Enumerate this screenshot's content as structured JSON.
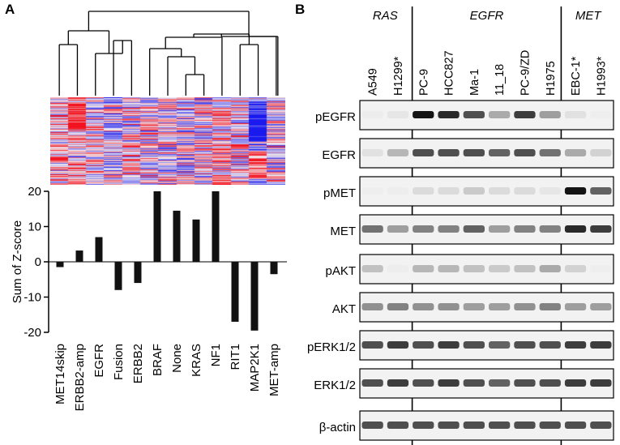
{
  "panel_a": {
    "letter": "A",
    "dendrogram_leaves": 13,
    "heatmap_colors": {
      "high": "#e8121d",
      "low": "#1a1aee",
      "mid": "#f2eef2"
    },
    "chart_data": {
      "type": "bar",
      "categories": [
        "MET14skip",
        "ERBB2-amp",
        "EGFR",
        "Fusion",
        "ERBB2",
        "BRAF",
        "None",
        "KRAS",
        "NF1",
        "RIT1",
        "MAP2K1",
        "MET-amp"
      ],
      "values": [
        -1.5,
        3.2,
        7,
        -8,
        -6,
        20,
        14.5,
        12,
        20,
        -17,
        -19.5,
        -3.5
      ],
      "ylabel": "Sum of Z-score",
      "ylim": [
        -20,
        20
      ],
      "yticks": [
        "20",
        "10",
        "0",
        "-10",
        "-20"
      ],
      "bar_color": "#111111"
    }
  },
  "panel_b": {
    "letter": "B",
    "groups": [
      {
        "label": "RAS",
        "lanes": [
          0,
          1
        ]
      },
      {
        "label": "EGFR",
        "lanes": [
          2,
          3,
          4,
          5,
          6,
          7
        ]
      },
      {
        "label": "MET",
        "lanes": [
          8,
          9
        ]
      }
    ],
    "lanes": [
      "A549",
      "H1299*",
      "PC-9",
      "HCC827",
      "Ma-1",
      "11_18",
      "PC-9/ZD",
      "H1975",
      "EBC-1*",
      "H1993*"
    ],
    "blots": [
      {
        "label": "pEGFR",
        "intensity": [
          0.1,
          0.2,
          1,
          0.95,
          0.85,
          0.55,
          0.9,
          0.6,
          0.25,
          0.05
        ]
      },
      {
        "label": "EGFR",
        "intensity": [
          0.25,
          0.5,
          0.85,
          0.85,
          0.85,
          0.8,
          0.85,
          0.75,
          0.55,
          0.35
        ]
      },
      {
        "label": "pMET",
        "intensity": [
          0.05,
          0.1,
          0.3,
          0.3,
          0.4,
          0.3,
          0.3,
          0.2,
          1,
          0.8
        ]
      },
      {
        "label": "MET",
        "intensity": [
          0.75,
          0.6,
          0.7,
          0.7,
          0.8,
          0.6,
          0.7,
          0.7,
          0.95,
          0.9
        ]
      },
      {
        "label": "pAKT",
        "intensity": [
          0.45,
          0.1,
          0.5,
          0.5,
          0.45,
          0.4,
          0.45,
          0.55,
          0.35,
          0.05
        ]
      },
      {
        "label": "AKT",
        "intensity": [
          0.65,
          0.7,
          0.65,
          0.65,
          0.6,
          0.6,
          0.65,
          0.7,
          0.6,
          0.6
        ]
      },
      {
        "label": "pERK1/2",
        "intensity": [
          0.85,
          0.9,
          0.85,
          0.9,
          0.85,
          0.8,
          0.85,
          0.85,
          0.9,
          0.9
        ]
      },
      {
        "label": "ERK1/2",
        "intensity": [
          0.85,
          0.9,
          0.85,
          0.9,
          0.85,
          0.8,
          0.85,
          0.85,
          0.9,
          0.9
        ]
      },
      {
        "label": "β-actin",
        "intensity": [
          0.85,
          0.85,
          0.85,
          0.85,
          0.85,
          0.85,
          0.85,
          0.85,
          0.85,
          0.85
        ]
      }
    ]
  }
}
